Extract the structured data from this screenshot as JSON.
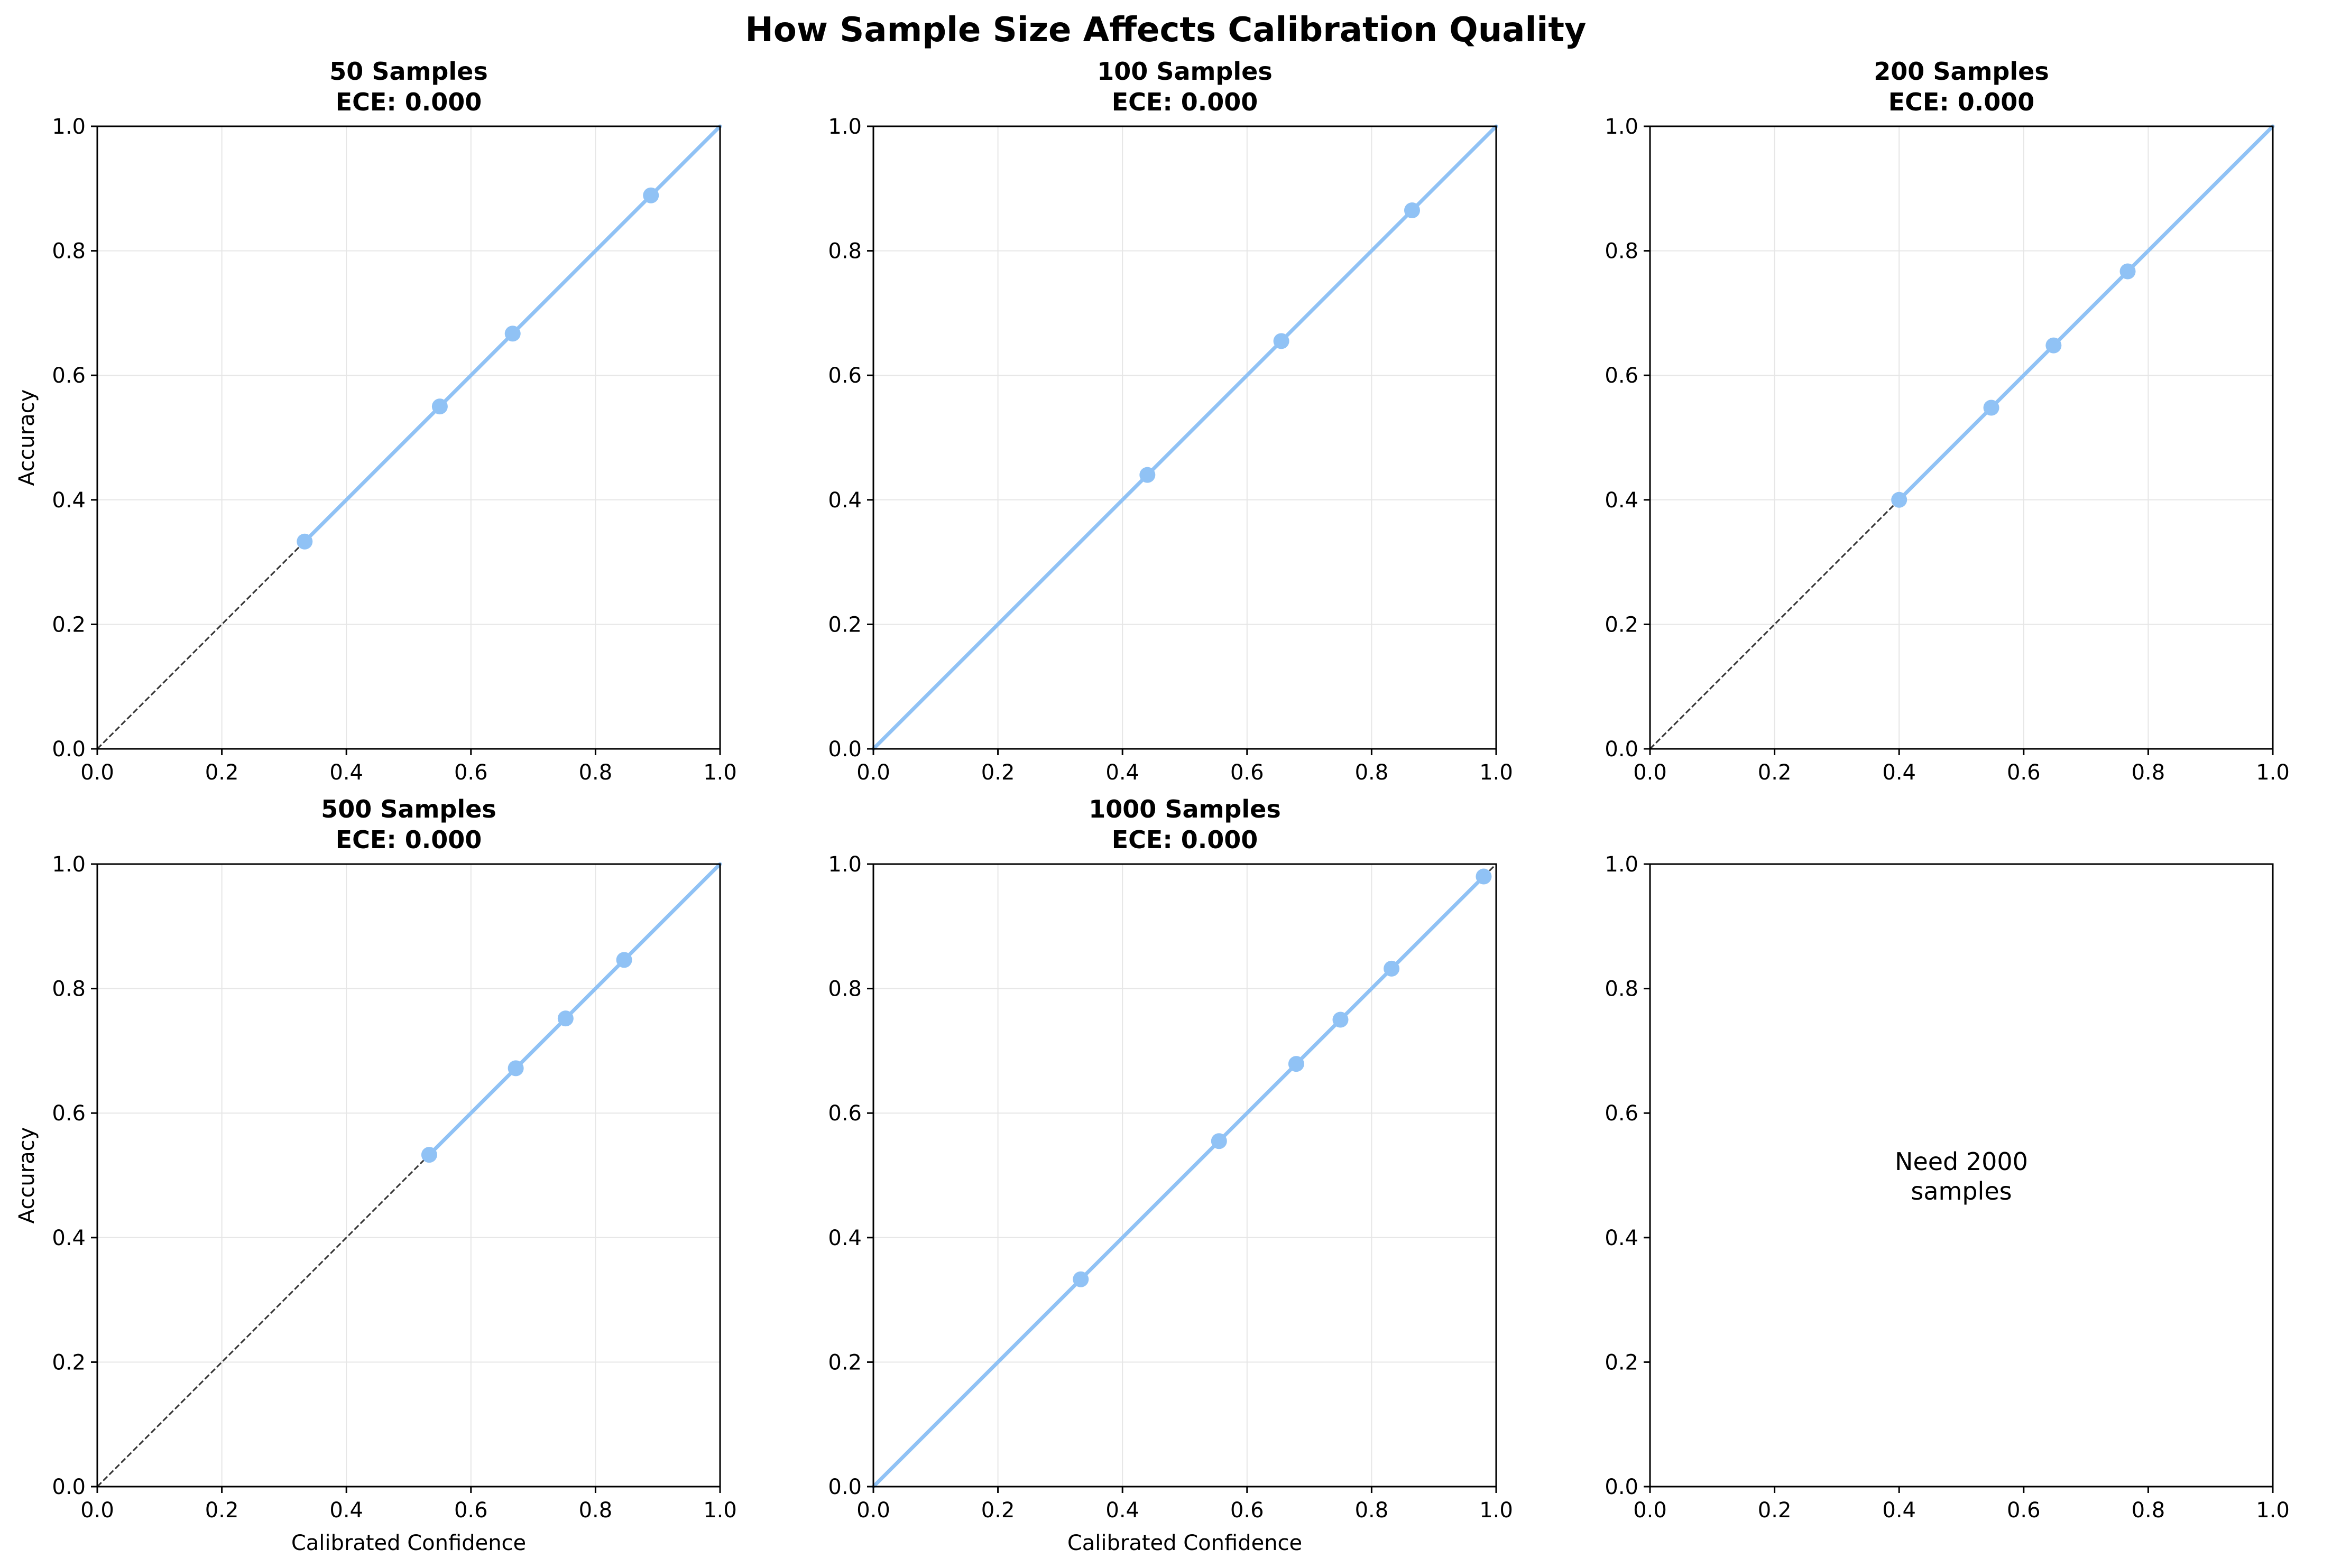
{
  "figure": {
    "title": "How Sample Size Affects Calibration Quality",
    "series_color": "#90c2f5",
    "reference_color": "#333333",
    "grid_color": "#e6e6e6"
  },
  "chart_data": [
    {
      "type": "line",
      "title_line1": "50 Samples",
      "title_line2": "ECE: 0.000",
      "xlabel": "",
      "ylabel": "Accuracy",
      "xlim": [
        0,
        1
      ],
      "ylim": [
        0,
        1
      ],
      "xticks": [
        "0.0",
        "0.2",
        "0.4",
        "0.6",
        "0.8",
        "1.0"
      ],
      "yticks": [
        "0.0",
        "0.2",
        "0.4",
        "0.6",
        "0.8",
        "1.0"
      ],
      "grid": true,
      "reference_line": "dashed diagonal",
      "line": [
        [
          0.333,
          0.333
        ],
        [
          0.55,
          0.55
        ],
        [
          0.667,
          0.667
        ],
        [
          0.889,
          0.889
        ],
        [
          1.0,
          1.0
        ]
      ],
      "points": [
        [
          0.333,
          0.333
        ],
        [
          0.55,
          0.55
        ],
        [
          0.667,
          0.667
        ],
        [
          0.889,
          0.889
        ]
      ]
    },
    {
      "type": "line",
      "title_line1": "100 Samples",
      "title_line2": "ECE: 0.000",
      "xlabel": "",
      "ylabel": "",
      "xlim": [
        0,
        1
      ],
      "ylim": [
        0,
        1
      ],
      "xticks": [
        "0.0",
        "0.2",
        "0.4",
        "0.6",
        "0.8",
        "1.0"
      ],
      "yticks": [
        "0.0",
        "0.2",
        "0.4",
        "0.6",
        "0.8",
        "1.0"
      ],
      "grid": true,
      "reference_line": "dashed diagonal",
      "line": [
        [
          0.0,
          0.0
        ],
        [
          0.44,
          0.44
        ],
        [
          0.655,
          0.655
        ],
        [
          0.865,
          0.865
        ],
        [
          1.0,
          1.0
        ]
      ],
      "points": [
        [
          0.44,
          0.44
        ],
        [
          0.655,
          0.655
        ],
        [
          0.865,
          0.865
        ]
      ]
    },
    {
      "type": "line",
      "title_line1": "200 Samples",
      "title_line2": "ECE: 0.000",
      "xlabel": "",
      "ylabel": "",
      "xlim": [
        0,
        1
      ],
      "ylim": [
        0,
        1
      ],
      "xticks": [
        "0.0",
        "0.2",
        "0.4",
        "0.6",
        "0.8",
        "1.0"
      ],
      "yticks": [
        "0.0",
        "0.2",
        "0.4",
        "0.6",
        "0.8",
        "1.0"
      ],
      "grid": true,
      "reference_line": "dashed diagonal",
      "line": [
        [
          0.4,
          0.4
        ],
        [
          0.548,
          0.548
        ],
        [
          0.648,
          0.648
        ],
        [
          0.767,
          0.767
        ],
        [
          1.0,
          1.0
        ]
      ],
      "points": [
        [
          0.4,
          0.4
        ],
        [
          0.548,
          0.548
        ],
        [
          0.648,
          0.648
        ],
        [
          0.767,
          0.767
        ]
      ]
    },
    {
      "type": "line",
      "title_line1": "500 Samples",
      "title_line2": "ECE: 0.000",
      "xlabel": "Calibrated Confidence",
      "ylabel": "Accuracy",
      "xlim": [
        0,
        1
      ],
      "ylim": [
        0,
        1
      ],
      "xticks": [
        "0.0",
        "0.2",
        "0.4",
        "0.6",
        "0.8",
        "1.0"
      ],
      "yticks": [
        "0.0",
        "0.2",
        "0.4",
        "0.6",
        "0.8",
        "1.0"
      ],
      "grid": true,
      "reference_line": "dashed diagonal",
      "line": [
        [
          0.533,
          0.533
        ],
        [
          0.672,
          0.672
        ],
        [
          0.752,
          0.752
        ],
        [
          0.846,
          0.846
        ],
        [
          1.0,
          1.0
        ]
      ],
      "points": [
        [
          0.533,
          0.533
        ],
        [
          0.672,
          0.672
        ],
        [
          0.752,
          0.752
        ],
        [
          0.846,
          0.846
        ]
      ]
    },
    {
      "type": "line",
      "title_line1": "1000 Samples",
      "title_line2": "ECE: 0.000",
      "xlabel": "Calibrated Confidence",
      "ylabel": "",
      "xlim": [
        0,
        1
      ],
      "ylim": [
        0,
        1
      ],
      "xticks": [
        "0.0",
        "0.2",
        "0.4",
        "0.6",
        "0.8",
        "1.0"
      ],
      "yticks": [
        "0.0",
        "0.2",
        "0.4",
        "0.6",
        "0.8",
        "1.0"
      ],
      "grid": true,
      "reference_line": "dashed diagonal",
      "line": [
        [
          0.0,
          0.0
        ],
        [
          0.333,
          0.333
        ],
        [
          0.555,
          0.555
        ],
        [
          0.679,
          0.679
        ],
        [
          0.75,
          0.75
        ],
        [
          0.832,
          0.832
        ],
        [
          0.98,
          0.98
        ]
      ],
      "points": [
        [
          0.333,
          0.333
        ],
        [
          0.555,
          0.555
        ],
        [
          0.679,
          0.679
        ],
        [
          0.75,
          0.75
        ],
        [
          0.832,
          0.832
        ],
        [
          0.98,
          0.98
        ]
      ]
    },
    {
      "type": "line",
      "title_line1": "",
      "title_line2": "",
      "xlabel": "",
      "ylabel": "",
      "xlim": [
        0,
        1
      ],
      "ylim": [
        0,
        1
      ],
      "xticks": [
        "0.0",
        "0.2",
        "0.4",
        "0.6",
        "0.8",
        "1.0"
      ],
      "yticks": [
        "0.0",
        "0.2",
        "0.4",
        "0.6",
        "0.8",
        "1.0"
      ],
      "grid": false,
      "reference_line": "none",
      "line": [],
      "points": [],
      "annotation": {
        "line1": "Need 2000",
        "line2": "samples",
        "x": 0.5,
        "y": 0.5
      }
    }
  ]
}
